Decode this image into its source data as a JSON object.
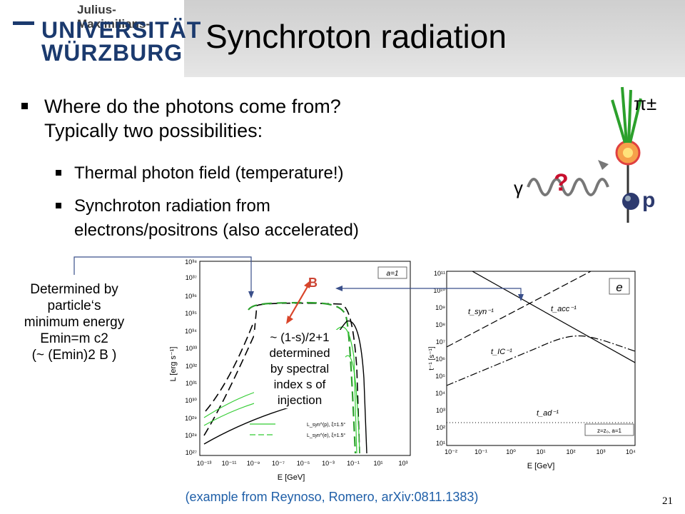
{
  "header": {
    "logo_top": "Julius-Maximilians-",
    "logo_line1": "UNIVERSITÄT",
    "logo_line2": "WÜRZBURG",
    "title": "Synchroton radiation"
  },
  "bullets": {
    "b1_line1": "Where do the photons come from?",
    "b1_line2": "Typically two possibilities:",
    "sub1": "Thermal photon field (temperature!)",
    "sub2_line1": "Synchroton radiation from",
    "sub2_line2": "electrons/positrons (also accelerated)"
  },
  "inset": {
    "gamma": "γ",
    "question": "?",
    "pi": "π±",
    "proton": "p"
  },
  "annotations": {
    "left_l1": "Determined by",
    "left_l2": "particle‘s",
    "left_l3": "minimum energy",
    "left_l4": "Emin=m c2",
    "left_l5": "(~ (Emin)2 B )",
    "b_label": "B",
    "mid_l1": "~ (1-s)/2+1",
    "mid_l2": "determined",
    "mid_l3": "by spectral",
    "mid_l4": "index s of",
    "mid_l5": "injection"
  },
  "left_chart": {
    "ylabel": "L [erg s⁻¹]",
    "xlabel": "E [GeV]",
    "box_label": "a=1",
    "yticks": [
      "10³⁸",
      "10³⁷",
      "10³⁶",
      "10³⁵",
      "10³⁴",
      "10³³",
      "10³²",
      "10³¹",
      "10³⁰",
      "10²⁹",
      "10²⁸",
      "10²⁷"
    ],
    "xticks": [
      "10⁻¹³",
      "10⁻¹¹",
      "10⁻⁹",
      "10⁻⁷",
      "10⁻⁵",
      "10⁻³",
      "10⁻¹",
      "10¹",
      "10³"
    ],
    "legend1": "L_syn^(p), ξ=1.5°",
    "legend2": "L_syn^(e), ξ=1.5°"
  },
  "right_chart": {
    "ylabel": "t⁻¹ [s⁻¹]",
    "xlabel": "E [GeV]",
    "box_label": "e",
    "note": "z=z₀, a=1",
    "yticks": [
      "10¹¹",
      "10¹⁰",
      "10⁹",
      "10⁸",
      "10⁷",
      "10⁶",
      "10⁵",
      "10⁴",
      "10³",
      "10²",
      "10¹"
    ],
    "xticks": [
      "10⁻²",
      "10⁻¹",
      "10⁰",
      "10¹",
      "10²",
      "10³",
      "10⁴"
    ],
    "l_syn": "t_syn⁻¹",
    "l_acc": "t_acc⁻¹",
    "l_ic": "t_IC⁻¹",
    "l_ad": "t_ad⁻¹"
  },
  "caption": "(example from Reynoso, Romero, arXiv:0811.1383)",
  "page_number": "21",
  "colors": {
    "brand": "#1b3a6e",
    "caption": "#1f5fa8",
    "green": "#2ca02c",
    "accent_red": "#c43"
  }
}
